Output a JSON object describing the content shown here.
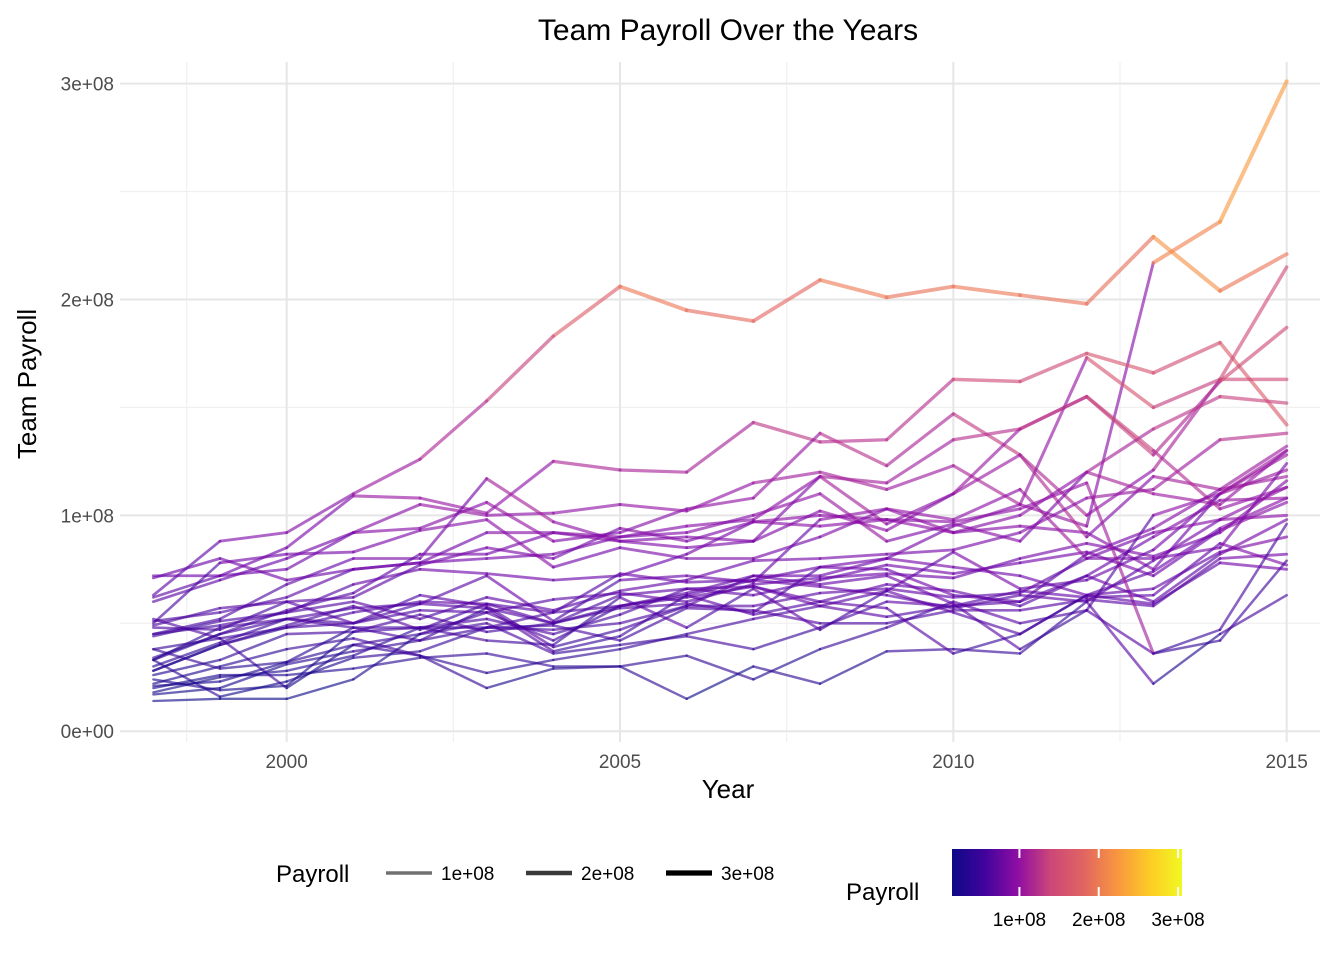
{
  "chart_data": {
    "type": "line",
    "title": "Team Payroll Over the Years",
    "xlabel": "Year",
    "ylabel": "Team Payroll",
    "xlim": [
      1997.5,
      2015.5
    ],
    "ylim": [
      -5000000.0,
      310000000.0
    ],
    "x_ticks": [
      2000,
      2005,
      2010,
      2015
    ],
    "x_tick_labels": [
      "2000",
      "2005",
      "2010",
      "2015"
    ],
    "y_ticks": [
      0,
      100000000,
      200000000,
      300000000
    ],
    "y_tick_labels": [
      "0e+00",
      "1e+08",
      "2e+08",
      "3e+08"
    ],
    "grid": true,
    "legend_position": "bottom",
    "legends": {
      "size_title": "Payroll",
      "size_labels": [
        "1e+08",
        "2e+08",
        "3e+08"
      ],
      "size_values": [
        100000000,
        200000000,
        300000000
      ],
      "color_title": "Payroll",
      "color_labels": [
        "1e+08",
        "2e+08",
        "3e+08"
      ],
      "color_values": [
        100000000,
        200000000,
        300000000
      ],
      "color_range": [
        15000000,
        305000000
      ],
      "colormap": "plasma"
    },
    "x": [
      1998,
      1999,
      2000,
      2001,
      2002,
      2003,
      2004,
      2005,
      2006,
      2007,
      2008,
      2009,
      2010,
      2011,
      2012,
      2013,
      2014,
      2015
    ],
    "series": [
      {
        "values": [
          63000000,
          88000000,
          92000000,
          110000000,
          126000000,
          153000000,
          183000000,
          206000000,
          195000000,
          190000000,
          209000000,
          201000000,
          206000000,
          202000000,
          198000000,
          229000000,
          204000000,
          221000000
        ]
      },
      {
        "values": [
          33000000,
          48000000,
          52000000,
          57000000,
          59000000,
          57000000,
          50000000,
          58000000,
          64000000,
          72000000,
          72000000,
          80000000,
          95000000,
          105000000,
          95000000,
          217000000,
          236000000,
          301000000
        ]
      },
      {
        "values": [
          62000000,
          72000000,
          85000000,
          109000000,
          108000000,
          101000000,
          125000000,
          121000000,
          120000000,
          143000000,
          134000000,
          135000000,
          163000000,
          162000000,
          175000000,
          166000000,
          180000000,
          142000000
        ]
      },
      {
        "values": [
          60000000,
          70000000,
          80000000,
          92000000,
          94000000,
          106000000,
          88000000,
          92000000,
          103000000,
          108000000,
          138000000,
          123000000,
          147000000,
          128000000,
          100000000,
          121000000,
          163000000,
          215000000
        ]
      },
      {
        "values": [
          51000000,
          55000000,
          62000000,
          75000000,
          78000000,
          80000000,
          82000000,
          90000000,
          95000000,
          98000000,
          118000000,
          115000000,
          135000000,
          140000000,
          155000000,
          128000000,
          162000000,
          187000000
        ]
      },
      {
        "values": [
          72000000,
          72000000,
          75000000,
          92000000,
          105000000,
          100000000,
          101000000,
          105000000,
          102000000,
          115000000,
          120000000,
          112000000,
          123000000,
          105000000,
          173000000,
          150000000,
          163000000,
          163000000
        ]
      },
      {
        "values": [
          45000000,
          52000000,
          68000000,
          80000000,
          80000000,
          117000000,
          97000000,
          88000000,
          90000000,
          88000000,
          118000000,
          96000000,
          110000000,
          128000000,
          90000000,
          118000000,
          112000000,
          118000000
        ]
      },
      {
        "values": [
          48000000,
          47000000,
          60000000,
          62000000,
          77000000,
          85000000,
          80000000,
          94000000,
          88000000,
          97000000,
          100000000,
          98000000,
          92000000,
          95000000,
          92000000,
          75000000,
          110000000,
          128000000
        ]
      },
      {
        "values": [
          33000000,
          45000000,
          56000000,
          64000000,
          82000000,
          82000000,
          92000000,
          90000000,
          92000000,
          100000000,
          110000000,
          88000000,
          96000000,
          88000000,
          120000000,
          140000000,
          155000000,
          152000000
        ]
      },
      {
        "values": [
          49000000,
          57000000,
          60000000,
          50000000,
          59000000,
          72000000,
          51000000,
          70000000,
          72000000,
          69000000,
          98000000,
          103000000,
          92000000,
          100000000,
          120000000,
          110000000,
          105000000,
          130000000
        ]
      },
      {
        "values": [
          45000000,
          49000000,
          55000000,
          60000000,
          52000000,
          62000000,
          56000000,
          65000000,
          70000000,
          79000000,
          80000000,
          82000000,
          84000000,
          92000000,
          108000000,
          112000000,
          135000000,
          138000000
        ]
      },
      {
        "values": [
          38000000,
          43000000,
          48000000,
          50000000,
          56000000,
          55000000,
          61000000,
          64000000,
          60000000,
          68000000,
          71000000,
          73000000,
          71000000,
          80000000,
          87000000,
          81000000,
          92000000,
          116000000
        ]
      },
      {
        "values": [
          26000000,
          33000000,
          45000000,
          46000000,
          48000000,
          48000000,
          47000000,
          50000000,
          58000000,
          58000000,
          64000000,
          66000000,
          62000000,
          64000000,
          80000000,
          92000000,
          98000000,
          113000000
        ]
      },
      {
        "values": [
          28000000,
          40000000,
          49000000,
          58000000,
          47000000,
          59000000,
          50000000,
          63000000,
          66000000,
          63000000,
          70000000,
          77000000,
          73000000,
          78000000,
          83000000,
          72000000,
          93000000,
          106000000
        ]
      },
      {
        "values": [
          21000000,
          23000000,
          32000000,
          40000000,
          45000000,
          55000000,
          42000000,
          58000000,
          62000000,
          67000000,
          60000000,
          68000000,
          65000000,
          58000000,
          72000000,
          90000000,
          107000000,
          108000000
        ]
      },
      {
        "values": [
          17000000,
          20000000,
          31000000,
          37000000,
          42000000,
          48000000,
          55000000,
          58000000,
          63000000,
          70000000,
          67000000,
          63000000,
          57000000,
          63000000,
          60000000,
          79000000,
          98000000,
          100000000
        ]
      },
      {
        "values": [
          33000000,
          16000000,
          23000000,
          34000000,
          37000000,
          48000000,
          49000000,
          42000000,
          57000000,
          56000000,
          50000000,
          50000000,
          56000000,
          56000000,
          61000000,
          58000000,
          80000000,
          82000000
        ]
      },
      {
        "values": [
          14000000,
          15000000,
          15000000,
          24000000,
          45000000,
          50000000,
          36000000,
          40000000,
          44000000,
          38000000,
          48000000,
          60000000,
          58000000,
          65000000,
          62000000,
          63000000,
          87000000,
          77000000
        ]
      },
      {
        "values": [
          20000000,
          26000000,
          26000000,
          29000000,
          34000000,
          36000000,
          30000000,
          30000000,
          35000000,
          24000000,
          38000000,
          48000000,
          60000000,
          50000000,
          56000000,
          36000000,
          42000000,
          79000000
        ]
      },
      {
        "values": [
          52000000,
          43000000,
          20000000,
          40000000,
          35000000,
          20000000,
          29000000,
          30000000,
          15000000,
          30000000,
          22000000,
          37000000,
          38000000,
          36000000,
          60000000,
          22000000,
          45000000,
          63000000
        ]
      },
      {
        "values": [
          34000000,
          45000000,
          52000000,
          48000000,
          42000000,
          57000000,
          37000000,
          44000000,
          63000000,
          54000000,
          60000000,
          57000000,
          36000000,
          45000000,
          63000000,
          74000000,
          94000000,
          108000000
        ]
      },
      {
        "values": [
          30000000,
          41000000,
          52000000,
          50000000,
          63000000,
          58000000,
          39000000,
          47000000,
          58000000,
          72000000,
          68000000,
          72000000,
          59000000,
          38000000,
          56000000,
          100000000,
          110000000,
          121000000
        ]
      },
      {
        "values": [
          50000000,
          78000000,
          82000000,
          83000000,
          93000000,
          98000000,
          76000000,
          85000000,
          80000000,
          80000000,
          90000000,
          103000000,
          98000000,
          112000000,
          80000000,
          80000000,
          85000000,
          124000000
        ]
      },
      {
        "values": [
          71000000,
          80000000,
          70000000,
          75000000,
          78000000,
          92000000,
          92000000,
          88000000,
          85000000,
          88000000,
          102000000,
          93000000,
          110000000,
          140000000,
          155000000,
          130000000,
          103000000,
          113000000
        ]
      },
      {
        "values": [
          44000000,
          51000000,
          55000000,
          68000000,
          75000000,
          73000000,
          70000000,
          72000000,
          82000000,
          97000000,
          95000000,
          98000000,
          97000000,
          103000000,
          115000000,
          36000000,
          47000000,
          96000000
        ]
      },
      {
        "values": [
          28000000,
          40000000,
          48000000,
          55000000,
          60000000,
          59000000,
          55000000,
          73000000,
          69000000,
          70000000,
          76000000,
          80000000,
          76000000,
          72000000,
          63000000,
          59000000,
          78000000,
          75000000
        ]
      },
      {
        "values": [
          22000000,
          30000000,
          38000000,
          43000000,
          35000000,
          27000000,
          33000000,
          38000000,
          45000000,
          52000000,
          58000000,
          53000000,
          58000000,
          60000000,
          72000000,
          60000000,
          82000000,
          98000000
        ]
      },
      {
        "values": [
          18000000,
          25000000,
          28000000,
          35000000,
          48000000,
          52000000,
          45000000,
          54000000,
          66000000,
          67000000,
          58000000,
          65000000,
          55000000,
          45000000,
          63000000,
          66000000,
          83000000,
          90000000
        ]
      },
      {
        "values": [
          38000000,
          29000000,
          32000000,
          48000000,
          48000000,
          42000000,
          40000000,
          62000000,
          48000000,
          66000000,
          47000000,
          65000000,
          83000000,
          66000000,
          70000000,
          84000000,
          110000000,
          130000000
        ]
      },
      {
        "values": [
          24000000,
          19000000,
          21000000,
          46000000,
          54000000,
          46000000,
          50000000,
          57000000,
          59000000,
          55000000,
          76000000,
          75000000,
          63000000,
          60000000,
          82000000,
          94000000,
          112000000,
          132000000
        ]
      }
    ]
  }
}
